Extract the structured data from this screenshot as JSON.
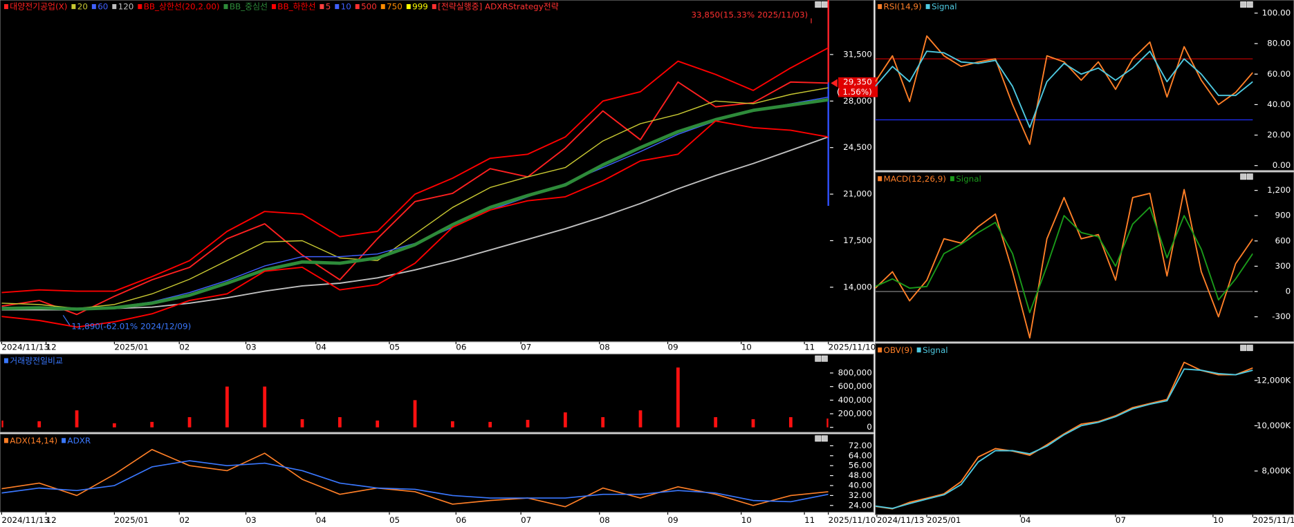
{
  "chart_data": [
    {
      "type": "line",
      "x": [
        0,
        11,
        22,
        33,
        44,
        55,
        66,
        77,
        88,
        99,
        110,
        121,
        132,
        143,
        154,
        165,
        176,
        187,
        198,
        209,
        220,
        231,
        242
      ],
      "xlim": [
        0,
        242
      ],
      "ylim": [
        9900,
        35600
      ],
      "xticks": [
        {
          "value": 0,
          "label": "2024/11/13"
        },
        {
          "value": 13,
          "label": "12"
        },
        {
          "value": 33,
          "label": "2025/01"
        },
        {
          "value": 52,
          "label": "02"
        },
        {
          "value": 71.5,
          "label": "03"
        },
        {
          "value": 92,
          "label": "04"
        },
        {
          "value": 113.5,
          "label": "05"
        },
        {
          "value": 133,
          "label": "06"
        },
        {
          "value": 152,
          "label": "07"
        },
        {
          "value": 175,
          "label": "08"
        },
        {
          "value": 195,
          "label": "09"
        },
        {
          "value": 216.5,
          "label": "10"
        },
        {
          "value": 235,
          "label": "11"
        },
        {
          "value": 242,
          "label": "2025/11/10"
        }
      ],
      "yticks": [
        {
          "value": 14000,
          "label": "14,000"
        },
        {
          "value": 17500,
          "label": "17,500"
        },
        {
          "value": 21000,
          "label": "21,000"
        },
        {
          "value": 24500,
          "label": "24,500"
        },
        {
          "value": 28000,
          "label": "28,000"
        },
        {
          "value": 31500,
          "label": "31,500"
        }
      ],
      "series": [
        {
          "name": "대양전기공업(X)",
          "color": "#ff2020",
          "width": 1.6,
          "values": [
            12575,
            13000,
            11950,
            13320,
            14560,
            15490,
            17650,
            18770,
            16420,
            14560,
            17650,
            20440,
            21060,
            22920,
            22300,
            24470,
            27260,
            25090,
            29430,
            27570,
            27880,
            29430,
            29350
          ]
        },
        {
          "name": "20",
          "color": "#c8c832",
          "width": 1.2,
          "values": [
            12800,
            12700,
            12400,
            12700,
            13500,
            14600,
            16000,
            17400,
            17500,
            16200,
            16000,
            18000,
            20000,
            21500,
            22300,
            23000,
            25000,
            26300,
            27000,
            28000,
            27800,
            28500,
            29000
          ]
        },
        {
          "name": "60",
          "color": "#4060ff",
          "width": 1.2,
          "values": [
            12500,
            12500,
            12400,
            12500,
            12900,
            13600,
            14500,
            15600,
            16300,
            16300,
            16500,
            17300,
            18500,
            19800,
            20800,
            21800,
            23000,
            24200,
            25500,
            26500,
            27300,
            27800,
            28300
          ]
        },
        {
          "name": "120",
          "color": "#c0c0c0",
          "width": 1.6,
          "values": [
            12300,
            12300,
            12300,
            12400,
            12500,
            12800,
            13200,
            13700,
            14100,
            14300,
            14700,
            15300,
            16000,
            16800,
            17600,
            18400,
            19300,
            20300,
            21400,
            22400,
            23300,
            24300,
            25300
          ]
        },
        {
          "name": "BB_상한선(20,2.00)",
          "color": "#ff0000",
          "width": 1.6,
          "values": [
            13600,
            13800,
            13700,
            13700,
            14800,
            16000,
            18200,
            19700,
            19500,
            17800,
            18200,
            21000,
            22200,
            23700,
            24000,
            25300,
            28000,
            28700,
            31000,
            30000,
            28800,
            30500,
            32000
          ]
        },
        {
          "name": "BB_중심선",
          "color": "#2e8b3a",
          "width": 4,
          "values": [
            12400,
            12450,
            12350,
            12450,
            12800,
            13400,
            14300,
            15300,
            15900,
            15800,
            16200,
            17200,
            18700,
            20000,
            20900,
            21700,
            23200,
            24500,
            25700,
            26600,
            27300,
            27700,
            28100
          ]
        },
        {
          "name": "BB_하한선",
          "color": "#ff0000",
          "width": 1.6,
          "values": [
            11800,
            11500,
            11000,
            11400,
            12000,
            13000,
            13500,
            15200,
            15500,
            13800,
            14200,
            15800,
            18500,
            19800,
            20500,
            20800,
            22000,
            23500,
            24000,
            26500,
            26000,
            25800,
            25300
          ]
        }
      ],
      "legend_extra": [
        {
          "name": "5",
          "color": "#ff4040"
        },
        {
          "name": "10",
          "color": "#4060ff"
        },
        {
          "name": "500",
          "color": "#ff3030"
        },
        {
          "name": "750",
          "color": "#ff8c00"
        },
        {
          "name": "999",
          "color": "#ffff00"
        }
      ],
      "strategy": "[전략실행중] ADXRStrategy전략",
      "high": {
        "x": 237,
        "value": 33850,
        "label": "33,850(15.33% 2025/11/03)"
      },
      "low": {
        "x": 18,
        "value": 11890,
        "label": "11,890(-62.01% 2024/12/09)"
      },
      "last_price": {
        "value": 29350,
        "label": "29,350",
        "change": "( 1.56%)"
      }
    },
    {
      "type": "bar",
      "title": "거래량전일비교",
      "color": "#ff1010",
      "x": [
        0,
        11,
        22,
        33,
        44,
        55,
        66,
        77,
        88,
        99,
        110,
        121,
        132,
        143,
        154,
        165,
        176,
        187,
        198,
        209,
        220,
        231,
        242
      ],
      "xlim": [
        0,
        242
      ],
      "ylim": [
        -73000,
        1078000
      ],
      "yticks": [
        0,
        {
          "value": 200000,
          "label": "200,000"
        },
        {
          "value": 400000,
          "label": "400,000"
        },
        {
          "value": 600000,
          "label": "600,000"
        },
        {
          "value": 800000,
          "label": "800,000"
        }
      ],
      "values": [
        100000,
        90000,
        250000,
        60000,
        80000,
        150000,
        600000,
        600000,
        120000,
        150000,
        100000,
        400000,
        90000,
        80000,
        110000,
        220000,
        150000,
        250000,
        880000,
        150000,
        120000,
        150000,
        130000
      ]
    },
    {
      "type": "line",
      "x": [
        0,
        11,
        22,
        33,
        44,
        55,
        66,
        77,
        88,
        99,
        110,
        121,
        132,
        143,
        154,
        165,
        176,
        187,
        198,
        209,
        220,
        231,
        242
      ],
      "xlim": [
        0,
        242
      ],
      "ylim": [
        18.6,
        81.5
      ],
      "xticks": [
        {
          "value": 0,
          "label": "2024/11/13"
        },
        {
          "value": 13,
          "label": "12"
        },
        {
          "value": 33,
          "label": "2025/01"
        },
        {
          "value": 52,
          "label": "02"
        },
        {
          "value": 71.5,
          "label": "03"
        },
        {
          "value": 92,
          "label": "04"
        },
        {
          "value": 113.5,
          "label": "05"
        },
        {
          "value": 133,
          "label": "06"
        },
        {
          "value": 152,
          "label": "07"
        },
        {
          "value": 175,
          "label": "08"
        },
        {
          "value": 195,
          "label": "09"
        },
        {
          "value": 216.5,
          "label": "10"
        },
        {
          "value": 235,
          "label": "11"
        },
        {
          "value": 242,
          "label": "2025/11/10"
        }
      ],
      "yticks": [
        {
          "value": 24,
          "label": "24.00"
        },
        {
          "value": 32,
          "label": "32.00"
        },
        {
          "value": 40,
          "label": "40.00"
        },
        {
          "value": 48,
          "label": "48.00"
        },
        {
          "value": 56,
          "label": "56.00"
        },
        {
          "value": 64,
          "label": "64.00"
        },
        {
          "value": 72,
          "label": "72.00"
        }
      ],
      "series": [
        {
          "name": "ADX(14,14)",
          "color": "#ff7f27",
          "width": 1.4,
          "values": [
            37.5,
            42,
            32,
            49,
            69,
            56,
            52,
            66,
            45,
            33,
            38,
            35,
            25,
            28,
            30,
            23,
            38,
            30,
            39,
            33,
            24,
            32,
            35
          ]
        },
        {
          "name": "ADXR",
          "color": "#3a78ff",
          "width": 1.4,
          "values": [
            34,
            38,
            36,
            40,
            55,
            60,
            56,
            58,
            52,
            42,
            38,
            37,
            32,
            30,
            30,
            30,
            33,
            33,
            36,
            34,
            28,
            27,
            33
          ]
        }
      ]
    },
    {
      "type": "line",
      "x": [
        0,
        11,
        22,
        33,
        44,
        55,
        66,
        77,
        88,
        99,
        110,
        121,
        132,
        143,
        154,
        165,
        176,
        187,
        198,
        209,
        220,
        231,
        242
      ],
      "xlim": [
        0,
        242
      ],
      "ylim": [
        -3.2,
        108.6
      ],
      "yticks": [
        {
          "value": 0,
          "label": "0.00"
        },
        {
          "value": 20,
          "label": "20.00"
        },
        {
          "value": 40,
          "label": "40.00"
        },
        {
          "value": 60,
          "label": "60.00"
        },
        {
          "value": 80,
          "label": "80.00"
        },
        {
          "value": 100,
          "label": "100.00"
        }
      ],
      "ref_lines": [
        {
          "value": 70,
          "color": "#d00000"
        },
        {
          "value": 30,
          "color": "#2030ff"
        }
      ],
      "series": [
        {
          "name": "RSI(14,9)",
          "color": "#ff7f27",
          "width": 1.6,
          "values": [
            55,
            72,
            42,
            85,
            72,
            65,
            68,
            70,
            40,
            14,
            72,
            68,
            56,
            68,
            50,
            70,
            81,
            45,
            78,
            56,
            40,
            48,
            61
          ]
        },
        {
          "name": "Signal",
          "color": "#4ec9e0",
          "width": 1.6,
          "values": [
            52,
            65,
            55,
            75,
            74,
            68,
            67,
            69,
            52,
            25,
            55,
            67,
            60,
            64,
            56,
            64,
            75,
            55,
            70,
            60,
            46,
            46,
            55
          ]
        }
      ]
    },
    {
      "type": "line",
      "x": [
        0,
        11,
        22,
        33,
        44,
        55,
        66,
        77,
        88,
        99,
        110,
        121,
        132,
        143,
        154,
        165,
        176,
        187,
        198,
        209,
        220,
        231,
        242
      ],
      "xlim": [
        0,
        242
      ],
      "ylim": [
        -596,
        1417
      ],
      "yticks": [
        -300,
        0,
        300,
        600,
        900,
        {
          "value": 1200,
          "label": "1,200"
        }
      ],
      "ref_lines": [
        {
          "value": 0,
          "color": "#909090"
        }
      ],
      "series": [
        {
          "name": "MACD(12,26,9)",
          "color": "#ff7f27",
          "width": 1.6,
          "values": [
            40,
            235,
            -110,
            135,
            625,
            575,
            770,
            920,
            235,
            -550,
            625,
            1115,
            625,
            675,
            135,
            1115,
            1165,
            185,
            1210,
            235,
            -300,
            330,
            625
          ]
        },
        {
          "name": "Signal",
          "color": "#1a9a1a",
          "width": 1.6,
          "values": [
            60,
            150,
            40,
            60,
            450,
            560,
            700,
            820,
            450,
            -250,
            300,
            900,
            700,
            650,
            300,
            800,
            1000,
            400,
            900,
            500,
            -100,
            150,
            450
          ]
        }
      ]
    },
    {
      "type": "line",
      "x": [
        0,
        11,
        22,
        33,
        44,
        55,
        66,
        77,
        88,
        99,
        110,
        121,
        132,
        143,
        154,
        165,
        176,
        187,
        198,
        209,
        220,
        231,
        242
      ],
      "xlim": [
        0,
        242
      ],
      "ylim": [
        6073,
        13636
      ],
      "xticks": [
        {
          "value": 1,
          "label": "2024/11/13"
        },
        {
          "value": 33,
          "label": "2025/01"
        },
        {
          "value": 93,
          "label": "04"
        },
        {
          "value": 154,
          "label": "07"
        },
        {
          "value": 216.5,
          "label": "10"
        },
        {
          "value": 242,
          "label": "2025/11/10"
        }
      ],
      "yticks": [
        {
          "value": 8000,
          "label": "8,000K"
        },
        {
          "value": 10000,
          "label": "10,000K"
        },
        {
          "value": 12000,
          "label": "12,000K"
        }
      ],
      "series": [
        {
          "name": "OBV(9)",
          "color": "#ff7f27",
          "width": 1.6,
          "values": [
            6440,
            6330,
            6620,
            6800,
            6990,
            7530,
            8620,
            8990,
            8880,
            8700,
            9160,
            9640,
            10070,
            10180,
            10440,
            10800,
            10980,
            11160,
            12800,
            12440,
            12250,
            12250,
            12550
          ]
        },
        {
          "name": "Signal",
          "color": "#4ec9e0",
          "width": 1.6,
          "values": [
            6450,
            6350,
            6560,
            6760,
            6950,
            7400,
            8400,
            8900,
            8900,
            8760,
            9100,
            9600,
            10000,
            10150,
            10400,
            10750,
            10950,
            11100,
            12500,
            12450,
            12300,
            12250,
            12450
          ]
        }
      ]
    }
  ]
}
